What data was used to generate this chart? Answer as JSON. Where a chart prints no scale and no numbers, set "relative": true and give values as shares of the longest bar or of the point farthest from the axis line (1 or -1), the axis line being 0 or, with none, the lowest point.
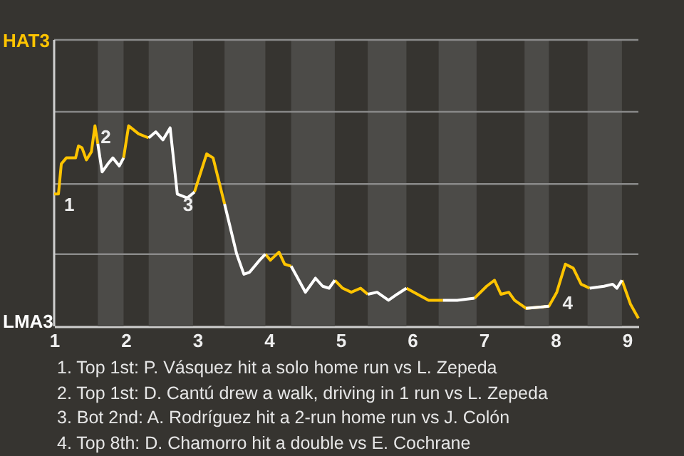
{
  "chart_data": {
    "type": "line",
    "relative": true,
    "x": [
      1,
      1.06,
      1.1,
      1.17,
      1.3,
      1.34,
      1.39,
      1.45,
      1.52,
      1.57,
      1.61,
      1.67,
      1.75,
      1.82,
      1.91,
      1.97,
      2.04,
      2.18,
      2.32,
      2.42,
      2.52,
      2.62,
      2.72,
      2.86,
      2.96,
      3.04,
      3.13,
      3.22,
      3.38,
      3.55,
      3.65,
      3.73,
      3.87,
      3.95,
      4.02,
      4.14,
      4.22,
      4.31,
      4.51,
      4.65,
      4.75,
      4.84,
      4.92,
      5.03,
      5.15,
      5.28,
      5.38,
      5.51,
      5.67,
      5.79,
      5.92,
      6.23,
      6.43,
      6.63,
      6.87,
      7.04,
      7.15,
      7.24,
      7.35,
      7.43,
      7.59,
      7.91,
      8.02,
      8.14,
      8.25,
      8.36,
      8.48,
      8.68,
      8.8,
      8.86,
      8.93,
      9.05,
      9.16
    ],
    "series": [
      {
        "color": "#ffc400",
        "values": [
          0.66,
          0.66,
          0.81,
          0.84,
          0.84,
          0.9,
          0.89,
          0.83,
          0.87,
          1,
          0.91,
          null,
          null,
          null,
          null,
          0.84,
          1,
          0.96,
          0.94,
          null,
          null,
          null,
          null,
          null,
          0.67,
          0.76,
          0.86,
          0.84,
          0.61,
          null,
          null,
          null,
          null,
          0.36,
          0.33,
          0.37,
          0.31,
          0.3,
          null,
          null,
          null,
          null,
          0.23,
          0.19,
          0.17,
          0.19,
          0.16,
          null,
          null,
          null,
          0.19,
          0.13,
          0.13,
          null,
          0.14,
          0.2,
          0.23,
          0.16,
          0.17,
          0.13,
          0.09,
          0.1,
          0.17,
          0.31,
          0.29,
          0.21,
          0.19,
          null,
          null,
          null,
          0.23,
          0.11,
          0.04
        ]
      },
      {
        "color": "#ffffff",
        "values": [
          null,
          null,
          null,
          null,
          null,
          null,
          null,
          null,
          null,
          null,
          0.91,
          0.77,
          0.81,
          0.84,
          0.8,
          0.84,
          null,
          null,
          0.94,
          0.97,
          0.93,
          0.99,
          0.66,
          0.64,
          0.67,
          null,
          null,
          null,
          0.61,
          0.36,
          0.26,
          0.27,
          0.33,
          0.36,
          null,
          null,
          null,
          0.3,
          0.17,
          0.24,
          0.2,
          0.19,
          0.23,
          null,
          null,
          null,
          0.16,
          0.17,
          0.13,
          0.16,
          0.19,
          null,
          0.13,
          0.13,
          0.14,
          null,
          null,
          null,
          null,
          null,
          0.09,
          0.1,
          null,
          null,
          null,
          null,
          0.19,
          0.2,
          0.21,
          0.19,
          0.23,
          null,
          null
        ]
      }
    ],
    "xlim": [
      1,
      9.16
    ],
    "xticks": [
      1,
      2,
      3,
      4,
      5,
      6,
      7,
      8,
      9
    ],
    "ref_lines": [
      {
        "axis": "y",
        "value": 0.36,
        "color": "#8a8a8a"
      },
      {
        "axis": "y",
        "value": 0.71,
        "color": "#8a8a8a"
      },
      {
        "axis": "y",
        "value": 1.07,
        "color": "#8a8a8a"
      }
    ],
    "bands": [
      {
        "axis": "x",
        "from": 1.61,
        "to": 1.97,
        "color": "#4c4b48"
      },
      {
        "axis": "x",
        "from": 2.32,
        "to": 2.94,
        "color": "#4c4b48"
      },
      {
        "axis": "x",
        "from": 3.38,
        "to": 3.95,
        "color": "#4c4b48"
      },
      {
        "axis": "x",
        "from": 4.31,
        "to": 4.92,
        "color": "#4c4b48"
      },
      {
        "axis": "x",
        "from": 5.38,
        "to": 5.92,
        "color": "#4c4b48"
      },
      {
        "axis": "x",
        "from": 6.37,
        "to": 6.9,
        "color": "#4c4b48"
      },
      {
        "axis": "x",
        "from": 7.57,
        "to": 7.91,
        "color": "#4c4b48"
      },
      {
        "axis": "x",
        "from": 8.45,
        "to": 8.93,
        "color": "#4c4b48"
      }
    ],
    "annotations": [
      "HAT3",
      "LMA3",
      {
        "text": "1",
        "x": 1.06,
        "y": 0.66
      },
      {
        "text": "2",
        "x": 1.57,
        "y": 1
      },
      {
        "text": "3",
        "x": 2.72,
        "y": 0.66
      },
      {
        "text": "4",
        "x": 8.02,
        "y": 0.17
      },
      "1. Top 1st: P. Vásquez hit a solo home run vs L. Zepeda",
      "2. Top 1st: D. Cantú drew a walk, driving in 1 run vs L. Zepeda",
      "3. Bot 2nd: A. Rodríguez hit a 2-run home run vs J. Colón",
      "4. Top 8th: D. Chamorro hit a double vs E. Cochrane"
    ]
  }
}
